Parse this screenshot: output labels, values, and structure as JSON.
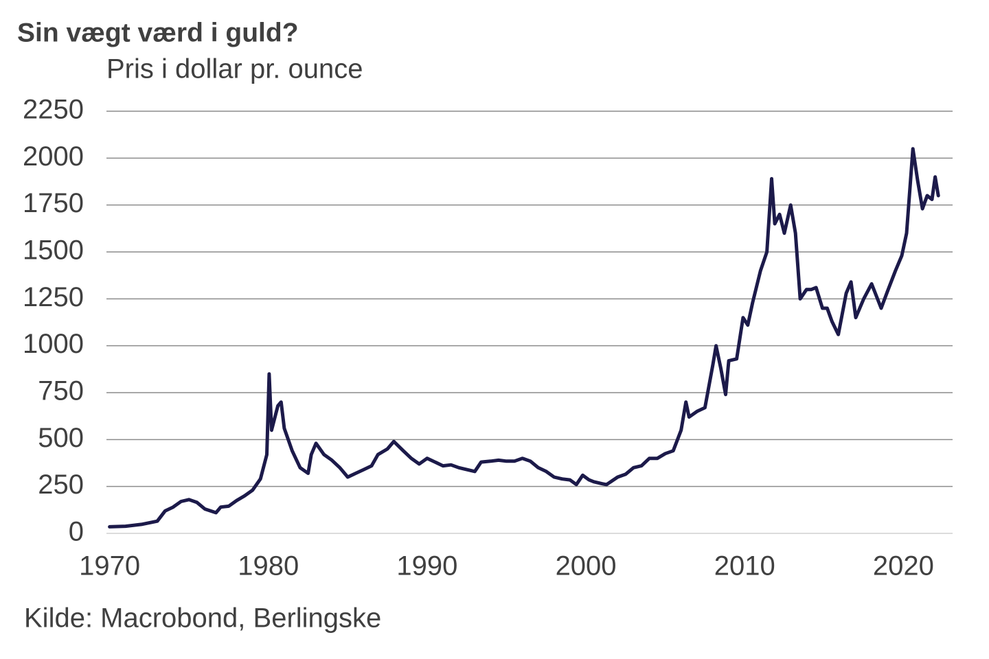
{
  "chart_data": {
    "type": "line",
    "title": "Sin vægt værd i guld?",
    "subtitle": "Pris i dollar pr. ounce",
    "source": "Kilde: Macrobond, Berlingske",
    "color": "#1c1a4a",
    "grid": true,
    "x": [
      1970,
      1971,
      1972,
      1973,
      1973.5,
      1974,
      1974.5,
      1975,
      1975.5,
      1976,
      1976.7,
      1977,
      1977.5,
      1978,
      1978.5,
      1979,
      1979.5,
      1979.9,
      1980.05,
      1980.2,
      1980.6,
      1980.8,
      1981,
      1981.5,
      1982,
      1982.5,
      1982.7,
      1983,
      1983.5,
      1984,
      1984.5,
      1985,
      1985.5,
      1986,
      1986.5,
      1986.9,
      1987.5,
      1987.9,
      1988.5,
      1989,
      1989.5,
      1990,
      1990.5,
      1991,
      1991.5,
      1992,
      1992.5,
      1993,
      1993.4,
      1994,
      1994.5,
      1995,
      1995.5,
      1996,
      1996.5,
      1997,
      1997.5,
      1998,
      1998.5,
      1999,
      1999.4,
      1999.8,
      2000.2,
      2000.5,
      2001,
      2001.3,
      2002,
      2002.5,
      2003,
      2003.5,
      2004,
      2004.5,
      2005,
      2005.5,
      2006,
      2006.3,
      2006.5,
      2007,
      2007.5,
      2008,
      2008.2,
      2008.5,
      2008.8,
      2009,
      2009.5,
      2009.9,
      2010.2,
      2010.5,
      2011,
      2011.4,
      2011.7,
      2011.9,
      2012.2,
      2012.5,
      2012.9,
      2013.2,
      2013.5,
      2013.9,
      2014.2,
      2014.5,
      2014.9,
      2015.2,
      2015.5,
      2015.9,
      2016.4,
      2016.7,
      2017,
      2017.5,
      2018,
      2018.6,
      2019,
      2019.5,
      2019.9,
      2020.2,
      2020.6,
      2020.9,
      2021.2,
      2021.5,
      2021.8,
      2022,
      2022.2
    ],
    "values": [
      35,
      38,
      48,
      65,
      120,
      140,
      170,
      180,
      165,
      130,
      110,
      140,
      145,
      175,
      200,
      230,
      290,
      420,
      850,
      550,
      680,
      700,
      560,
      440,
      350,
      320,
      420,
      480,
      420,
      390,
      350,
      300,
      320,
      340,
      360,
      420,
      450,
      490,
      440,
      400,
      370,
      400,
      380,
      360,
      365,
      350,
      340,
      330,
      380,
      385,
      390,
      385,
      385,
      400,
      385,
      350,
      330,
      300,
      290,
      285,
      260,
      310,
      285,
      275,
      265,
      260,
      300,
      315,
      350,
      360,
      400,
      400,
      425,
      440,
      550,
      700,
      620,
      650,
      670,
      900,
      1000,
      880,
      740,
      920,
      930,
      1150,
      1110,
      1230,
      1400,
      1500,
      1890,
      1650,
      1700,
      1600,
      1750,
      1600,
      1250,
      1300,
      1300,
      1310,
      1200,
      1200,
      1130,
      1060,
      1280,
      1340,
      1150,
      1250,
      1330,
      1200,
      1290,
      1400,
      1480,
      1600,
      2050,
      1880,
      1730,
      1800,
      1780,
      1900,
      1800
    ],
    "xlim": [
      1969.8,
      2023.1
    ],
    "xticks": [
      1970,
      1980,
      1990,
      2000,
      2010,
      2020
    ],
    "ylim": [
      0,
      2250
    ],
    "yticks": [
      0,
      250,
      500,
      750,
      1000,
      1250,
      1500,
      1750,
      2000,
      2250
    ]
  }
}
